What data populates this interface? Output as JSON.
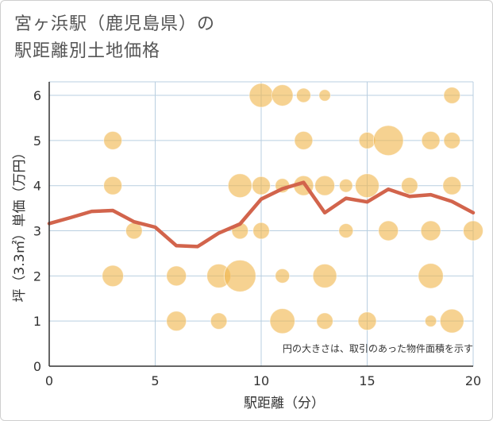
{
  "title_line1": "宮ヶ浜駅（鹿児島県）の",
  "title_line2": "駅距離別土地価格",
  "chart_data": {
    "type": "scatter",
    "xlabel": "駅距離（分）",
    "ylabel": "坪（3.3㎡）単価（万円）",
    "xlim": [
      0,
      20
    ],
    "ylim": [
      0,
      6.3
    ],
    "xticks": [
      0,
      5,
      10,
      15,
      20
    ],
    "yticks": [
      0,
      1,
      2,
      3,
      4,
      5,
      6
    ],
    "grid": true,
    "annotation": "円の大きさは、取引のあった物件面積を示す",
    "colors": {
      "bubble": "#f0b64e",
      "line": "#d2644c",
      "grid": "#b9cfe0",
      "axis": "#333333"
    },
    "bubbles": [
      {
        "x": 10,
        "y": 6,
        "size": 4
      },
      {
        "x": 11,
        "y": 6,
        "size": 3
      },
      {
        "x": 12,
        "y": 6,
        "size": 1
      },
      {
        "x": 13,
        "y": 6,
        "size": 0.5
      },
      {
        "x": 19,
        "y": 6,
        "size": 1.5
      },
      {
        "x": 3,
        "y": 5,
        "size": 2
      },
      {
        "x": 12,
        "y": 5,
        "size": 2
      },
      {
        "x": 15,
        "y": 5,
        "size": 1.5
      },
      {
        "x": 16,
        "y": 5,
        "size": 7
      },
      {
        "x": 18,
        "y": 5,
        "size": 2
      },
      {
        "x": 19,
        "y": 5,
        "size": 1.5
      },
      {
        "x": 3,
        "y": 4,
        "size": 2
      },
      {
        "x": 9,
        "y": 4,
        "size": 4
      },
      {
        "x": 10,
        "y": 4,
        "size": 2
      },
      {
        "x": 11,
        "y": 4,
        "size": 1
      },
      {
        "x": 12,
        "y": 4,
        "size": 2.5
      },
      {
        "x": 13,
        "y": 4,
        "size": 2.5
      },
      {
        "x": 14,
        "y": 4,
        "size": 0.8
      },
      {
        "x": 15,
        "y": 4,
        "size": 4
      },
      {
        "x": 17,
        "y": 4,
        "size": 1.5
      },
      {
        "x": 19,
        "y": 4,
        "size": 2
      },
      {
        "x": 4,
        "y": 3,
        "size": 1.5
      },
      {
        "x": 9,
        "y": 3,
        "size": 1.5
      },
      {
        "x": 10,
        "y": 3,
        "size": 1.5
      },
      {
        "x": 14,
        "y": 3,
        "size": 1
      },
      {
        "x": 16,
        "y": 3,
        "size": 2.5
      },
      {
        "x": 18,
        "y": 3,
        "size": 2.5
      },
      {
        "x": 20,
        "y": 3,
        "size": 2.5
      },
      {
        "x": 3,
        "y": 2,
        "size": 3
      },
      {
        "x": 6,
        "y": 2,
        "size": 2.5
      },
      {
        "x": 8,
        "y": 2,
        "size": 4
      },
      {
        "x": 9,
        "y": 2,
        "size": 8
      },
      {
        "x": 11,
        "y": 2,
        "size": 1
      },
      {
        "x": 13,
        "y": 2,
        "size": 4
      },
      {
        "x": 18,
        "y": 2,
        "size": 4.5
      },
      {
        "x": 6,
        "y": 1,
        "size": 2.5
      },
      {
        "x": 8,
        "y": 1,
        "size": 1.5
      },
      {
        "x": 11,
        "y": 1,
        "size": 4.5
      },
      {
        "x": 13,
        "y": 1,
        "size": 1.5
      },
      {
        "x": 15,
        "y": 1,
        "size": 2
      },
      {
        "x": 18,
        "y": 1,
        "size": 0.5
      },
      {
        "x": 19,
        "y": 1,
        "size": 4
      }
    ],
    "line": {
      "x": [
        0,
        1,
        2,
        3,
        4,
        5,
        6,
        7,
        8,
        9,
        10,
        11,
        12,
        13,
        14,
        15,
        16,
        17,
        18,
        19,
        20
      ],
      "y": [
        3.16,
        3.29,
        3.43,
        3.45,
        3.2,
        3.08,
        2.67,
        2.65,
        2.95,
        3.15,
        3.7,
        3.93,
        4.07,
        3.4,
        3.72,
        3.64,
        3.92,
        3.76,
        3.8,
        3.65,
        3.4
      ]
    }
  }
}
